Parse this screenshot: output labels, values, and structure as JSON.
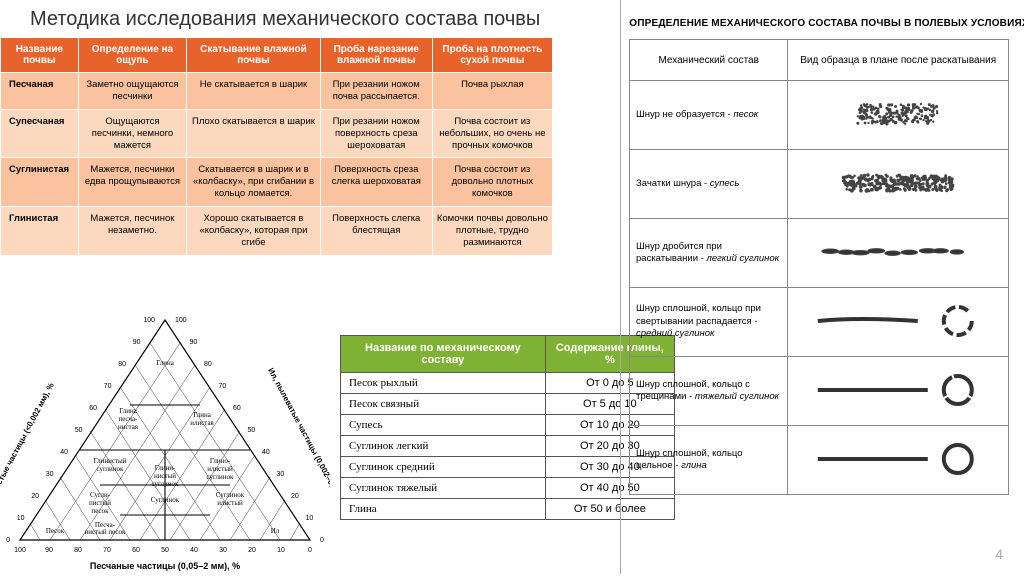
{
  "mainTable": {
    "title": "Методика исследования механического состава почвы",
    "headers": [
      "Название почвы",
      "Определение на ощупь",
      "Скатывание влажной почвы",
      "Проба нарезание влажной почвы",
      "Проба на плотность сухой почвы"
    ],
    "rows": [
      [
        "Песчаная",
        "Заметно ощущаются песчинки",
        "Не скатывается в шарик",
        "При резании ножом почва рассыпается.",
        "Почва рыхлая"
      ],
      [
        "Супесчаная",
        "Ощущаются песчинки, немного мажется",
        "Плохо скатывается в шарик",
        "При резании ножом поверхность среза шероховатая",
        "Почва состоит из небольших, но очень не прочных комочков"
      ],
      [
        "Суглинистая",
        "Мажется, песчинки едва прощупываются",
        "Скатывается в шарик и в «колбаску», при сгибании в кольцо ломается.",
        "Поверхность среза слегка шероховатая",
        "Почва состоит из довольно плотных комочков"
      ],
      [
        "Глинистая",
        "Мажется, песчинок незаметно.",
        "Хорошо скатывается в «колбаску», которая при сгибе",
        "Поверхность слегка блестящая",
        "Комочки почвы довольно плотные, трудно разминаются"
      ]
    ],
    "colors": {
      "header_bg": "#e8632c",
      "row_even_bg": "#fac29e",
      "row_odd_bg": "#fcd8bf"
    }
  },
  "triangle": {
    "axis_left": "глинистые частицы (<0,002 мм), %",
    "axis_right": "Ил, пылеватые частицы (0,002–0,05 мм), %",
    "axis_bottom": "Песчаные частицы (0,05–2 мм), %",
    "ticks": [
      0,
      10,
      20,
      30,
      40,
      50,
      60,
      70,
      80,
      90,
      100
    ],
    "bottom_ticks": [
      100,
      90,
      80,
      70,
      60,
      50,
      40,
      30,
      20,
      10,
      0
    ],
    "labels": [
      "Глина",
      "Глина песча-нистая",
      "Глина илистая",
      "Глино-илистый суглинок",
      "Глинистый суглинок",
      "Глини-нистый суглинок",
      "Сугли-пистый песок",
      "Суглинок",
      "Суглинок илистый",
      "Песок",
      "Песча-нистый песок",
      "Ил"
    ]
  },
  "greenTable": {
    "headers": [
      "Название по механическому составу",
      "Содержание глины, %"
    ],
    "rows": [
      [
        "Песок рыхлый",
        "От 0 до 5"
      ],
      [
        "Песок связный",
        "От 5 до 10"
      ],
      [
        "Супесь",
        "От 10 до 20"
      ],
      [
        "Суглинок легкий",
        "От 20 до 30"
      ],
      [
        "Суглинок средний",
        "От 30 до 40"
      ],
      [
        "Суглинок тяжелый",
        "От 40 до 50"
      ],
      [
        "Глина",
        "От 50 и более"
      ]
    ],
    "header_bg": "#7fb135"
  },
  "rightTable": {
    "title": "ОПРЕДЕЛЕНИЕ МЕХАНИЧЕСКОГО СОСТАВА ПОЧВЫ В ПОЛЕВЫХ УСЛОВИЯХ",
    "headers": [
      "Механический состав",
      "Вид образца в плане после раскатывания"
    ],
    "rows": [
      {
        "desc": "Шнур не образуется - <i>песок</i>",
        "kind": "sand"
      },
      {
        "desc": "Зачатки шнура - <i>супесь</i>",
        "kind": "supess"
      },
      {
        "desc": "Шнур дробится при раскатывании - <i>легкий суглинок</i>",
        "kind": "light"
      },
      {
        "desc": "Шнур сплошной, кольцо при свертывании распадается - <i>средний суглинок</i>",
        "kind": "medium"
      },
      {
        "desc": "Шнур сплошной, кольцо с трещинами - <i>тяжелый суглинок</i>",
        "kind": "heavy"
      },
      {
        "desc": "Шнур сплошной, кольцо цельное - <i>глина</i>",
        "kind": "clay"
      }
    ]
  },
  "slideNum": "4"
}
